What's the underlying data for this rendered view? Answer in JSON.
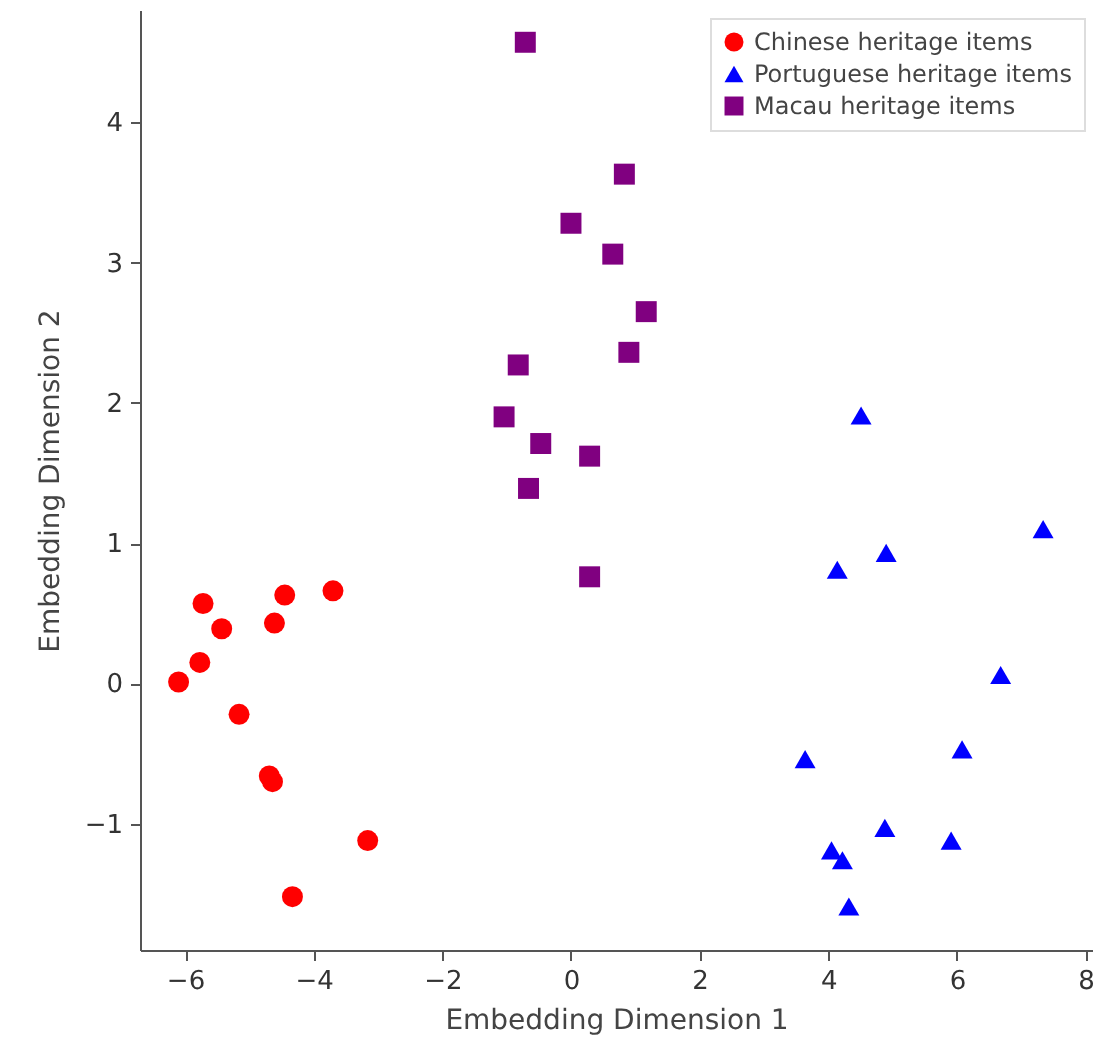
{
  "chart_data": {
    "type": "scatter",
    "xlabel": "Embedding Dimension 1",
    "ylabel": "Embedding Dimension 2",
    "xlim": [
      -6.7,
      8.1
    ],
    "ylim": [
      -1.9,
      4.8
    ],
    "xticks": [
      -6,
      -4,
      -2,
      0,
      2,
      4,
      6,
      8
    ],
    "yticks": [
      -1,
      0,
      1,
      2,
      3,
      4
    ],
    "grid": false,
    "legend": "top right",
    "series": [
      {
        "name": "Chinese heritage items",
        "color": "#ff0000",
        "marker": "circle",
        "x": [
          -5.72,
          -4.45,
          -3.7,
          -5.43,
          -4.61,
          -5.77,
          -6.1,
          -5.16,
          -4.69,
          -4.64,
          -3.16,
          -4.33
        ],
        "values": [
          0.57,
          0.63,
          0.66,
          0.39,
          0.43,
          0.15,
          0.01,
          -0.22,
          -0.66,
          -0.7,
          -1.12,
          -1.52
        ]
      },
      {
        "name": "Portuguese heritage items",
        "color": "#0000ff",
        "marker": "triangle",
        "x": [
          4.51,
          7.34,
          4.9,
          4.14,
          6.68,
          6.08,
          3.64,
          4.88,
          5.91,
          4.05,
          4.22,
          4.32
        ],
        "values": [
          1.91,
          1.1,
          0.93,
          0.81,
          0.06,
          -0.47,
          -0.54,
          -1.03,
          -1.12,
          -1.19,
          -1.26,
          -1.59
        ]
      },
      {
        "name": "Macau heritage items",
        "color": "#800080",
        "marker": "square",
        "x": [
          -0.71,
          0.83,
          0.0,
          0.65,
          1.17,
          0.9,
          -0.82,
          -1.04,
          -0.47,
          0.29,
          -0.66,
          0.29
        ],
        "values": [
          4.57,
          3.63,
          3.28,
          3.06,
          2.65,
          2.36,
          2.27,
          1.9,
          1.71,
          1.62,
          1.39,
          0.76
        ]
      }
    ]
  }
}
